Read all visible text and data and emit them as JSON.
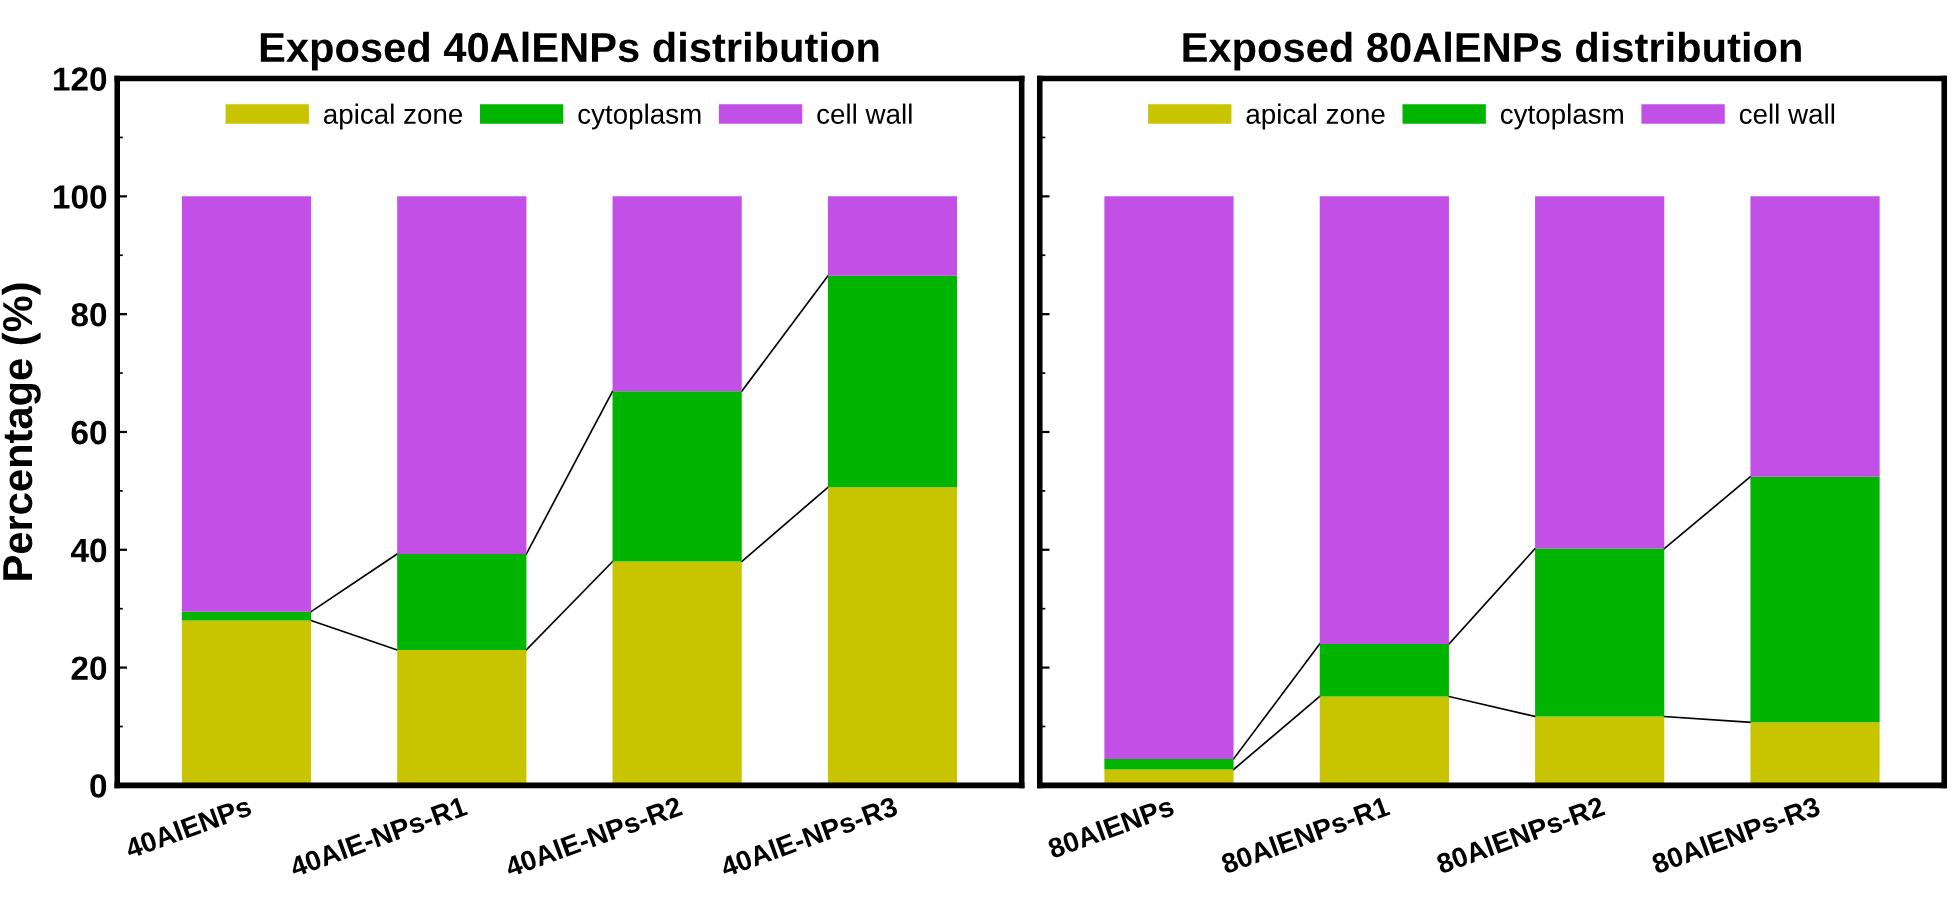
{
  "chart_data": [
    {
      "type": "bar",
      "title": "Exposed 40AlENPs distribution",
      "ylabel": "Percentage (%)",
      "stacked": true,
      "legend": "top",
      "categories": [
        "40AlENPs",
        "40AlE-NPs-R1",
        "40AlE-NPs-R2",
        "40AlE-NPs-R3"
      ],
      "ylim": [
        0,
        120
      ],
      "yticks": [
        0,
        20,
        40,
        60,
        80,
        100,
        120
      ],
      "series": [
        {
          "name": "apical zone",
          "color": "#c8c400",
          "values": [
            28,
            23,
            38,
            50.6
          ]
        },
        {
          "name": "cytoplasm",
          "color": "#00b400",
          "values": [
            1.5,
            16.3,
            28.9,
            35.9
          ]
        },
        {
          "name": "cell wall",
          "color": "#c250e6",
          "values": [
            70.5,
            60.7,
            33.1,
            13.5
          ]
        }
      ]
    },
    {
      "type": "bar",
      "title": "Exposed 80AlENPs distribution",
      "stacked": true,
      "legend": "top",
      "tick_labels": "x",
      "categories": [
        "80AlENPs",
        "80AlENPs-R1",
        "80AlENPs-R2",
        "80AlENPs-R3"
      ],
      "ylim": [
        0,
        120
      ],
      "yticks": [
        0,
        20,
        40,
        60,
        80,
        100,
        120
      ],
      "series": [
        {
          "name": "apical zone",
          "color": "#c8c400",
          "values": [
            2.7,
            15.1,
            11.7,
            10.7
          ]
        },
        {
          "name": "cytoplasm",
          "color": "#00b400",
          "values": [
            1.8,
            8.9,
            28.5,
            41.7
          ]
        },
        {
          "name": "cell wall",
          "color": "#c250e6",
          "values": [
            95.5,
            76,
            59.8,
            47.6
          ]
        }
      ]
    }
  ]
}
